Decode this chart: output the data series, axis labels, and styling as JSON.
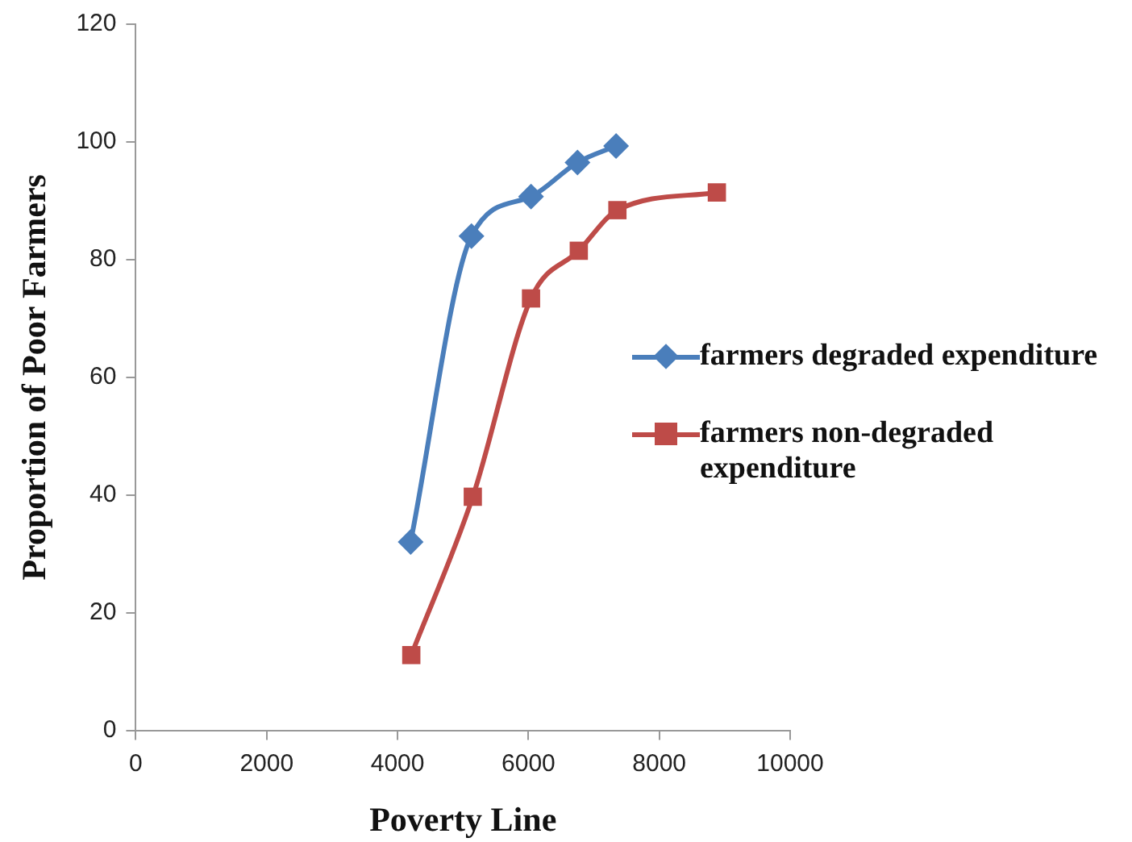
{
  "chart_data": {
    "type": "line",
    "xlabel": "Poverty Line",
    "ylabel": "Proportion of Poor Farmers",
    "xlim": [
      0,
      10000
    ],
    "xticks": [
      0,
      2000,
      4000,
      6000,
      8000,
      10000
    ],
    "ylim": [
      0,
      120
    ],
    "yticks": [
      0,
      20,
      40,
      60,
      80,
      100,
      120
    ],
    "grid": false,
    "legend": "right",
    "series": [
      {
        "name": "farmers degraded expenditure",
        "color": "#4a7ebb",
        "marker": "diamond",
        "x": [
          4200,
          5130,
          6040,
          6750,
          7340
        ],
        "values": [
          32,
          84,
          90.7,
          96.5,
          99.3
        ]
      },
      {
        "name": "farmers non-degraded expenditure",
        "color": "#be4b48",
        "marker": "square",
        "x": [
          4210,
          5150,
          6040,
          6770,
          7360,
          8880
        ],
        "values": [
          12.8,
          39.7,
          73.4,
          81.5,
          88.4,
          91.4
        ]
      }
    ]
  }
}
